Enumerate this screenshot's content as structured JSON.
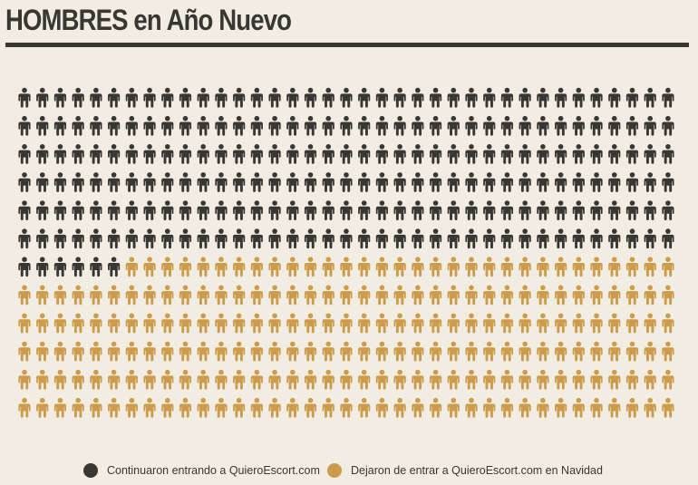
{
  "title": "HOMBRES en Año Nuevo",
  "chart_data": {
    "type": "pictogram",
    "title": "HOMBRES en Año Nuevo",
    "rows": 12,
    "columns": 37,
    "total_icons": 444,
    "icon": "man-icon",
    "series": [
      {
        "name": "Continuaron entrando a QuieroEscort.com",
        "count": 228,
        "color": "#3a3632"
      },
      {
        "name": "Dejaron de entrar a QuieroEscort.com en Navidad",
        "count": 216,
        "color": "#cc9c4c"
      }
    ]
  }
}
